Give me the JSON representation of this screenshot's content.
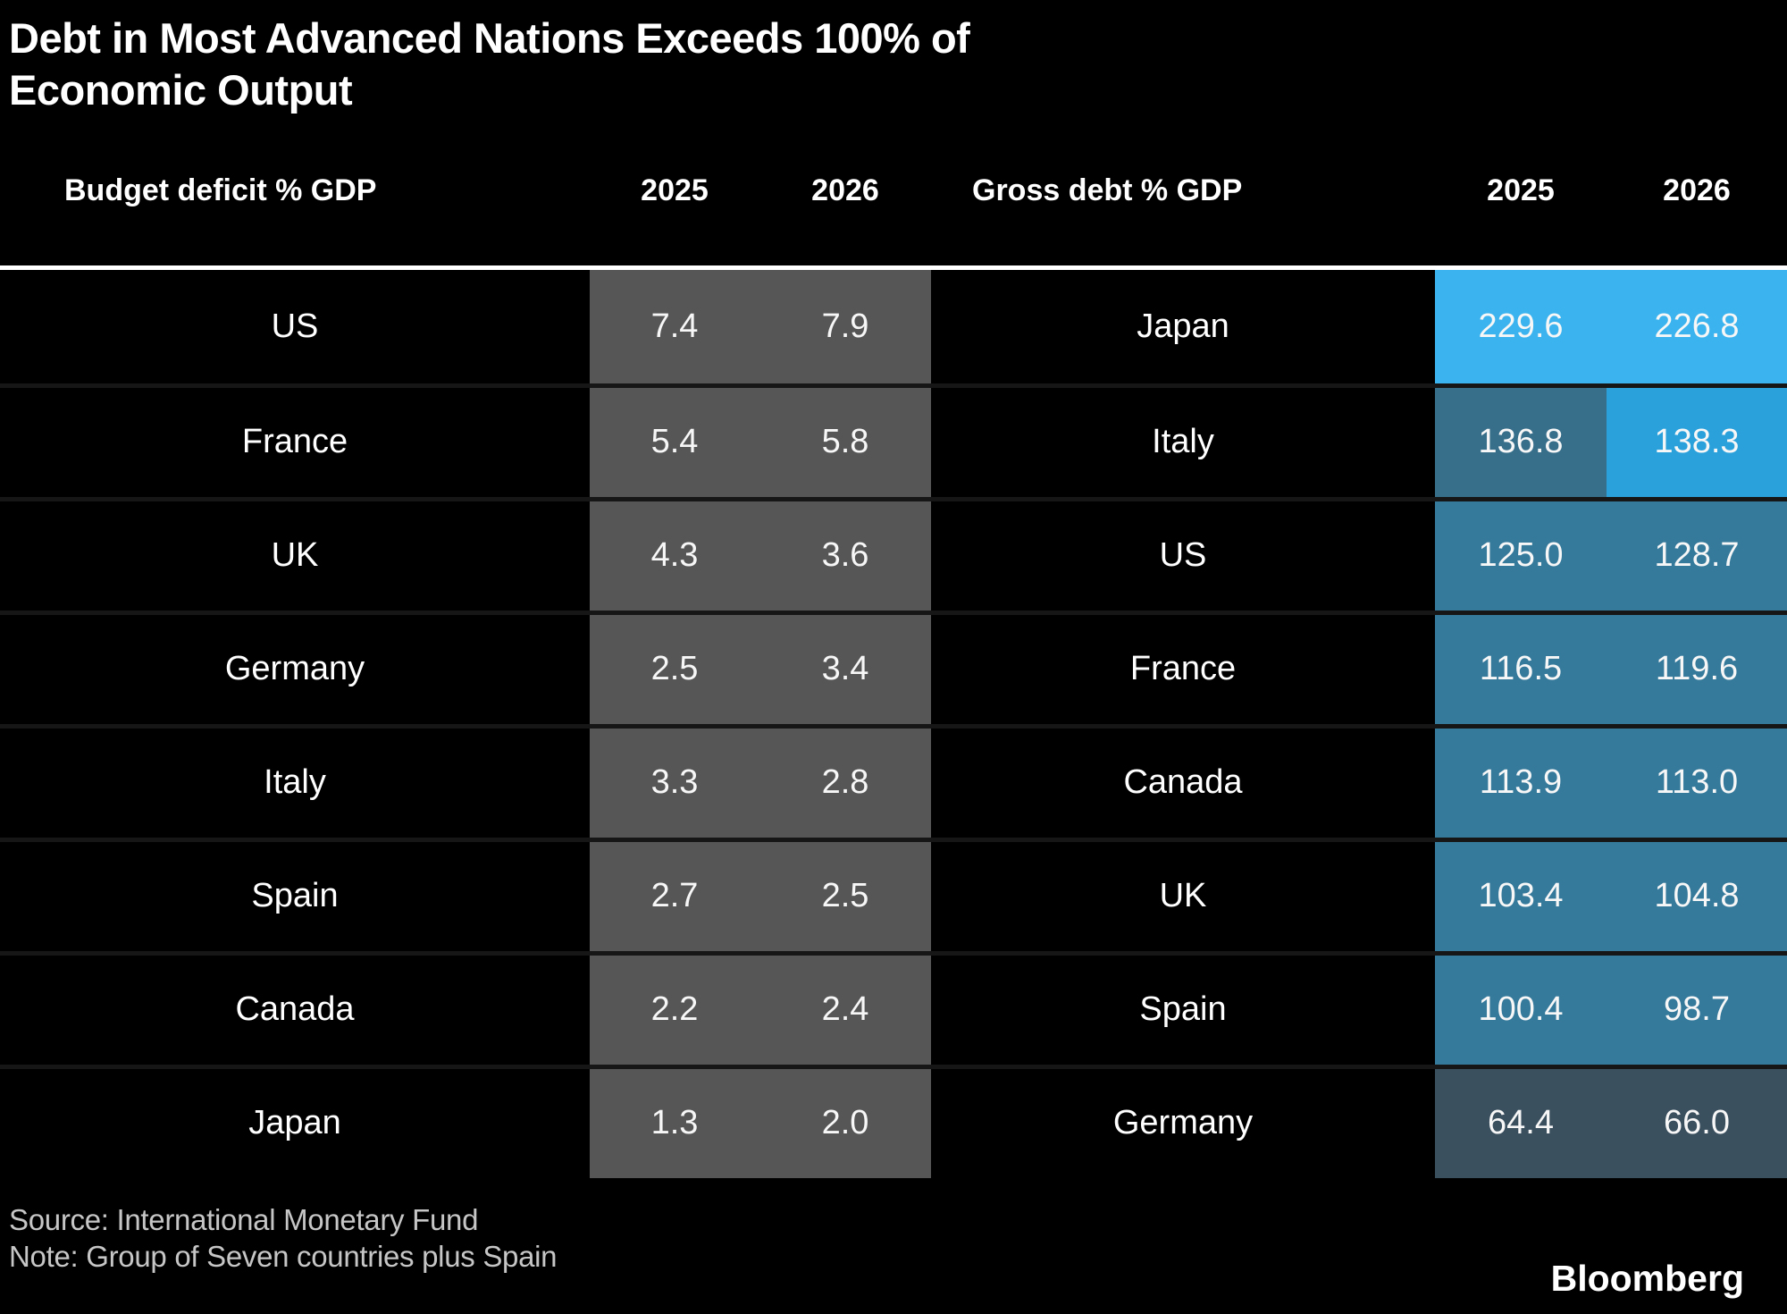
{
  "title_lines": [
    "Debt in Most Advanced Nations Exceeds 100% of",
    "Economic Output"
  ],
  "source_line": "Source: International Monetary Fund",
  "note_line": "Note: Group of Seven countries plus Spain",
  "brand": "Bloomberg",
  "colors": {
    "background": "#000000",
    "text": "#ffffff",
    "muted_text": "#c6c6c6",
    "deficit_cell_gray": "#565656",
    "debt_steel_blue": "#35799b",
    "debt_bright_cyan": "#3ab3ee",
    "debt_bright_blue": "#2ba1dc",
    "debt_italy_2025": "#376e8a",
    "debt_dark_slate": "#3b505f",
    "header_rule": "#ffffff",
    "row_separator": "#161616"
  },
  "chart_data": [
    {
      "type": "table",
      "title": "Budget deficit % GDP",
      "columns": [
        "2025",
        "2026"
      ],
      "rows": [
        {
          "country": "US",
          "v2025": "7.4",
          "v2026": "7.9",
          "c2025": "#565656",
          "c2026": "#565656"
        },
        {
          "country": "France",
          "v2025": "5.4",
          "v2026": "5.8",
          "c2025": "#565656",
          "c2026": "#565656"
        },
        {
          "country": "UK",
          "v2025": "4.3",
          "v2026": "3.6",
          "c2025": "#565656",
          "c2026": "#565656"
        },
        {
          "country": "Germany",
          "v2025": "2.5",
          "v2026": "3.4",
          "c2025": "#565656",
          "c2026": "#565656"
        },
        {
          "country": "Italy",
          "v2025": "3.3",
          "v2026": "2.8",
          "c2025": "#565656",
          "c2026": "#565656"
        },
        {
          "country": "Spain",
          "v2025": "2.7",
          "v2026": "2.5",
          "c2025": "#565656",
          "c2026": "#565656"
        },
        {
          "country": "Canada",
          "v2025": "2.2",
          "v2026": "2.4",
          "c2025": "#565656",
          "c2026": "#565656"
        },
        {
          "country": "Japan",
          "v2025": "1.3",
          "v2026": "2.0",
          "c2025": "#565656",
          "c2026": "#565656"
        }
      ]
    },
    {
      "type": "table",
      "title": "Gross debt % GDP",
      "columns": [
        "2025",
        "2026"
      ],
      "rows": [
        {
          "country": "Japan",
          "v2025": "229.6",
          "v2026": "226.8",
          "c2025": "#3ab3ee",
          "c2026": "#3ab3ee"
        },
        {
          "country": "Italy",
          "v2025": "136.8",
          "v2026": "138.3",
          "c2025": "#376e8a",
          "c2026": "#2ba1dc"
        },
        {
          "country": "US",
          "v2025": "125.0",
          "v2026": "128.7",
          "c2025": "#35799b",
          "c2026": "#35799b"
        },
        {
          "country": "France",
          "v2025": "116.5",
          "v2026": "119.6",
          "c2025": "#35799b",
          "c2026": "#35799b"
        },
        {
          "country": "Canada",
          "v2025": "113.9",
          "v2026": "113.0",
          "c2025": "#35799b",
          "c2026": "#35799b"
        },
        {
          "country": "UK",
          "v2025": "103.4",
          "v2026": "104.8",
          "c2025": "#35799b",
          "c2026": "#35799b"
        },
        {
          "country": "Spain",
          "v2025": "100.4",
          "v2026": "98.7",
          "c2025": "#35799b",
          "c2026": "#35799b"
        },
        {
          "country": "Germany",
          "v2025": "64.4",
          "v2026": "66.0",
          "c2025": "#3b505f",
          "c2026": "#3b505f"
        }
      ]
    }
  ]
}
